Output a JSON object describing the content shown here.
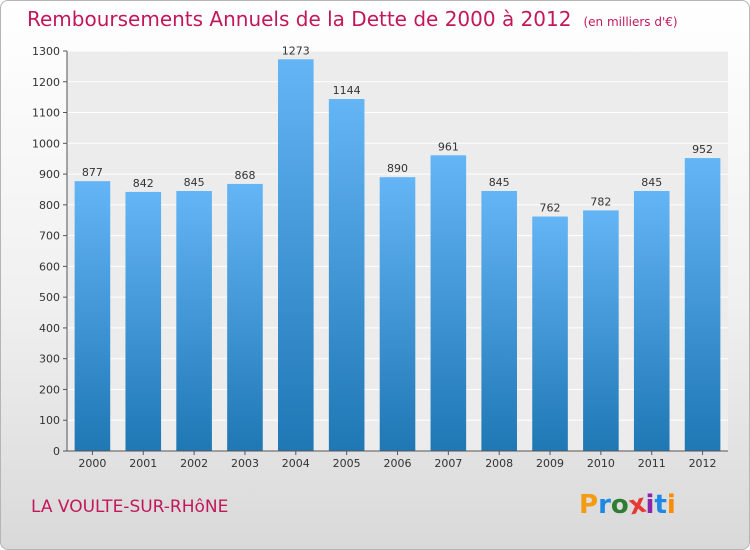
{
  "header": {
    "title": "Remboursements Annuels de la Dette de 2000 à 2012",
    "unit": "(en milliers d'€)"
  },
  "commune": "LA VOULTE-SUR-RHôNE",
  "logo": {
    "text": "Proxiti",
    "letters": [
      "P",
      "r",
      "o",
      "x",
      "i",
      "t",
      "i"
    ],
    "colors": [
      "#f39c12",
      "#1e88e5",
      "#2e7d32",
      "#e53935",
      "#8e24aa",
      "#1e88e5",
      "#fb8c00"
    ]
  },
  "colors": {
    "title": "#c2185b",
    "bar_top": "#64b5f6",
    "bar_bottom": "#1f77b4"
  },
  "chart_data": {
    "type": "bar",
    "title": "Remboursements Annuels de la Dette de 2000 à 2012",
    "xlabel": "",
    "ylabel": "",
    "categories": [
      "2000",
      "2001",
      "2002",
      "2003",
      "2004",
      "2005",
      "2006",
      "2007",
      "2008",
      "2009",
      "2010",
      "2011",
      "2012"
    ],
    "values": [
      877,
      842,
      845,
      868,
      1273,
      1144,
      890,
      961,
      845,
      762,
      782,
      845,
      952
    ],
    "ylim": [
      0,
      1300
    ],
    "yticks": [
      0,
      100,
      200,
      300,
      400,
      500,
      600,
      700,
      800,
      900,
      1000,
      1100,
      1200,
      1300
    ],
    "grid": true,
    "data_labels": true
  }
}
